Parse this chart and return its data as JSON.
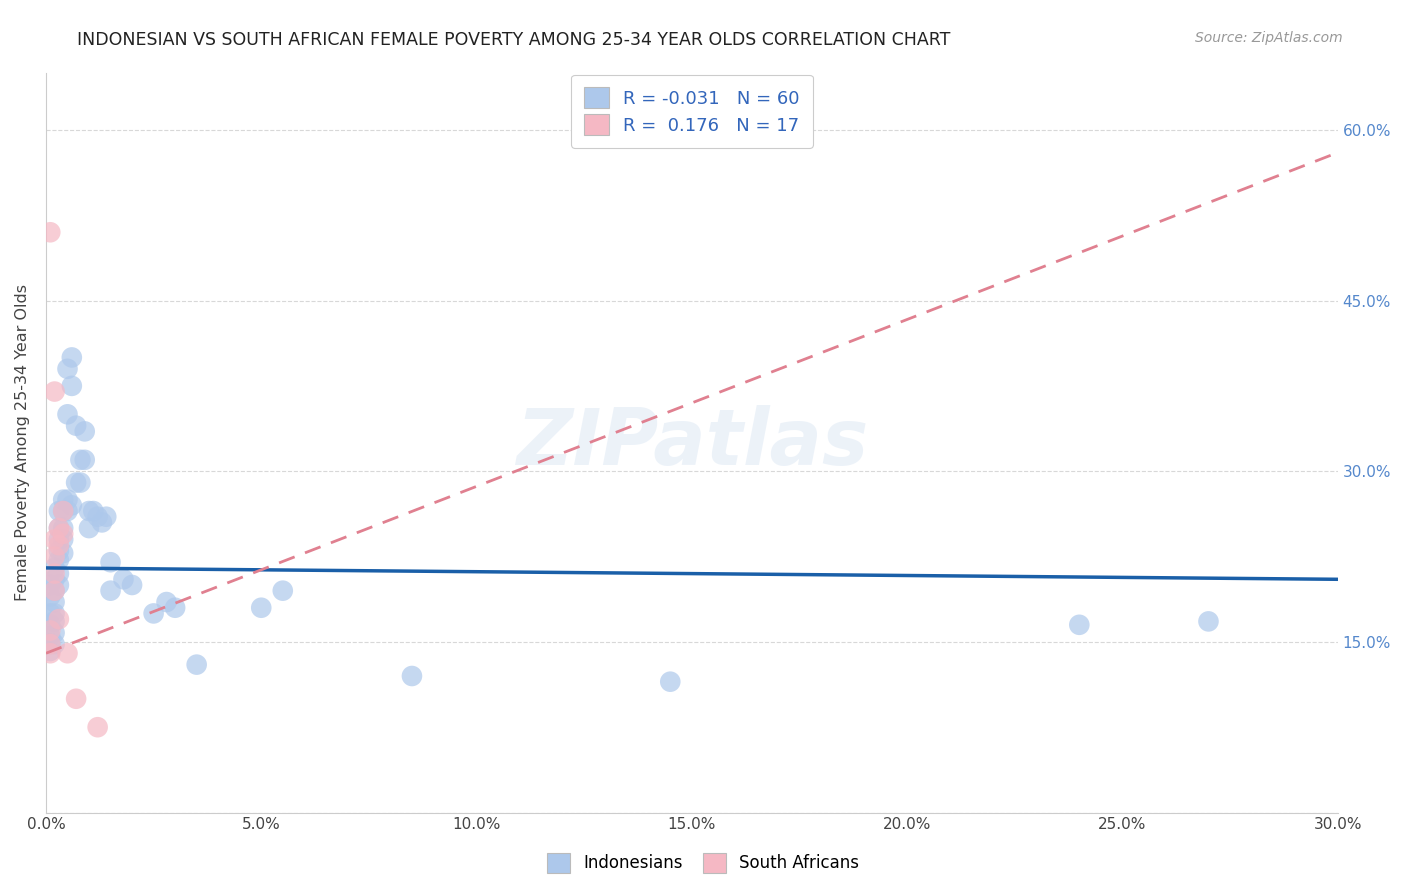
{
  "title": "INDONESIAN VS SOUTH AFRICAN FEMALE POVERTY AMONG 25-34 YEAR OLDS CORRELATION CHART",
  "source": "Source: ZipAtlas.com",
  "ylabel": "Female Poverty Among 25-34 Year Olds",
  "xlim": [
    0.0,
    0.3
  ],
  "ylim": [
    0.0,
    0.65
  ],
  "xticks": [
    0.0,
    0.05,
    0.1,
    0.15,
    0.2,
    0.25,
    0.3
  ],
  "yticks": [
    0.0,
    0.15,
    0.3,
    0.45,
    0.6
  ],
  "right_ytick_labels": [
    "15.0%",
    "30.0%",
    "45.0%",
    "60.0%"
  ],
  "right_ytick_vals": [
    0.15,
    0.3,
    0.45,
    0.6
  ],
  "legend_r_indonesian": "-0.031",
  "legend_n_indonesian": "60",
  "legend_r_southafrican": " 0.176",
  "legend_n_southafrican": "17",
  "indonesian_color": "#adc8eb",
  "southafrican_color": "#f5b8c4",
  "indonesian_line_color": "#1a5fa8",
  "southafrican_line_color": "#e08090",
  "watermark": "ZIPatlas",
  "indonesian_points": [
    [
      0.001,
      0.2
    ],
    [
      0.001,
      0.19
    ],
    [
      0.001,
      0.175
    ],
    [
      0.001,
      0.165
    ],
    [
      0.001,
      0.155
    ],
    [
      0.001,
      0.148
    ],
    [
      0.001,
      0.142
    ],
    [
      0.002,
      0.215
    ],
    [
      0.002,
      0.205
    ],
    [
      0.002,
      0.195
    ],
    [
      0.002,
      0.185
    ],
    [
      0.002,
      0.175
    ],
    [
      0.002,
      0.168
    ],
    [
      0.002,
      0.158
    ],
    [
      0.002,
      0.148
    ],
    [
      0.003,
      0.265
    ],
    [
      0.003,
      0.25
    ],
    [
      0.003,
      0.24
    ],
    [
      0.003,
      0.23
    ],
    [
      0.003,
      0.222
    ],
    [
      0.003,
      0.21
    ],
    [
      0.003,
      0.2
    ],
    [
      0.004,
      0.275
    ],
    [
      0.004,
      0.265
    ],
    [
      0.004,
      0.25
    ],
    [
      0.004,
      0.24
    ],
    [
      0.004,
      0.228
    ],
    [
      0.005,
      0.39
    ],
    [
      0.005,
      0.35
    ],
    [
      0.005,
      0.275
    ],
    [
      0.005,
      0.265
    ],
    [
      0.006,
      0.4
    ],
    [
      0.006,
      0.375
    ],
    [
      0.006,
      0.27
    ],
    [
      0.007,
      0.34
    ],
    [
      0.007,
      0.29
    ],
    [
      0.008,
      0.31
    ],
    [
      0.008,
      0.29
    ],
    [
      0.009,
      0.335
    ],
    [
      0.009,
      0.31
    ],
    [
      0.01,
      0.265
    ],
    [
      0.01,
      0.25
    ],
    [
      0.011,
      0.265
    ],
    [
      0.012,
      0.26
    ],
    [
      0.013,
      0.255
    ],
    [
      0.014,
      0.26
    ],
    [
      0.015,
      0.22
    ],
    [
      0.015,
      0.195
    ],
    [
      0.018,
      0.205
    ],
    [
      0.02,
      0.2
    ],
    [
      0.025,
      0.175
    ],
    [
      0.028,
      0.185
    ],
    [
      0.03,
      0.18
    ],
    [
      0.035,
      0.13
    ],
    [
      0.05,
      0.18
    ],
    [
      0.055,
      0.195
    ],
    [
      0.085,
      0.12
    ],
    [
      0.145,
      0.115
    ],
    [
      0.24,
      0.165
    ],
    [
      0.27,
      0.168
    ]
  ],
  "southafrican_points": [
    [
      0.001,
      0.51
    ],
    [
      0.001,
      0.16
    ],
    [
      0.001,
      0.148
    ],
    [
      0.001,
      0.14
    ],
    [
      0.002,
      0.37
    ],
    [
      0.002,
      0.24
    ],
    [
      0.002,
      0.225
    ],
    [
      0.002,
      0.21
    ],
    [
      0.002,
      0.195
    ],
    [
      0.003,
      0.25
    ],
    [
      0.003,
      0.235
    ],
    [
      0.003,
      0.17
    ],
    [
      0.004,
      0.265
    ],
    [
      0.004,
      0.245
    ],
    [
      0.005,
      0.14
    ],
    [
      0.007,
      0.1
    ],
    [
      0.012,
      0.075
    ]
  ],
  "background_color": "#ffffff",
  "grid_color": "#d8d8d8"
}
